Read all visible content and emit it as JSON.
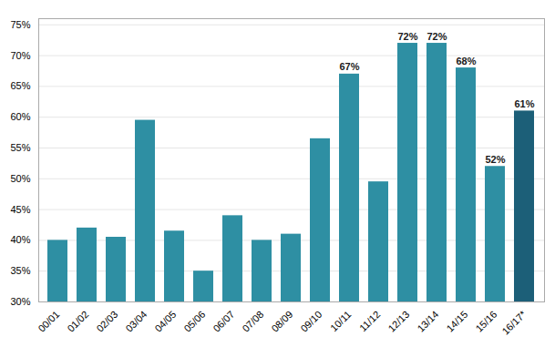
{
  "chart_data": {
    "type": "bar",
    "categories": [
      "00/01",
      "01/02",
      "02/03",
      "03/04",
      "04/05",
      "05/06",
      "06/07",
      "07/08",
      "08/09",
      "09/10",
      "10/11",
      "11/12",
      "12/13",
      "13/14",
      "14/15",
      "15/16",
      "16/17*"
    ],
    "values": [
      40,
      42,
      40.5,
      59.5,
      41.5,
      35,
      44,
      40,
      41,
      56.5,
      67,
      49.5,
      72,
      72,
      68,
      52,
      61
    ],
    "value_labels": [
      null,
      null,
      null,
      null,
      null,
      null,
      null,
      null,
      null,
      null,
      "67%",
      null,
      "72%",
      "72%",
      "68%",
      "52%",
      "61%"
    ],
    "data_labels": true,
    "colors": [
      "#2e8fa3",
      "#2e8fa3",
      "#2e8fa3",
      "#2e8fa3",
      "#2e8fa3",
      "#2e8fa3",
      "#2e8fa3",
      "#2e8fa3",
      "#2e8fa3",
      "#2e8fa3",
      "#2e8fa3",
      "#2e8fa3",
      "#2e8fa3",
      "#2e8fa3",
      "#2e8fa3",
      "#2e8fa3",
      "#1c5f78"
    ],
    "ylim": [
      30,
      76
    ],
    "yticks": [
      {
        "value": 30,
        "label": "30%"
      },
      {
        "value": 35,
        "label": "35%"
      },
      {
        "value": 40,
        "label": "40%"
      },
      {
        "value": 45,
        "label": "45%"
      },
      {
        "value": 50,
        "label": "50%"
      },
      {
        "value": 55,
        "label": "55%"
      },
      {
        "value": 60,
        "label": "60%"
      },
      {
        "value": 65,
        "label": "65%"
      },
      {
        "value": 70,
        "label": "70%"
      },
      {
        "value": 75,
        "label": "75%"
      }
    ],
    "grid": true
  }
}
